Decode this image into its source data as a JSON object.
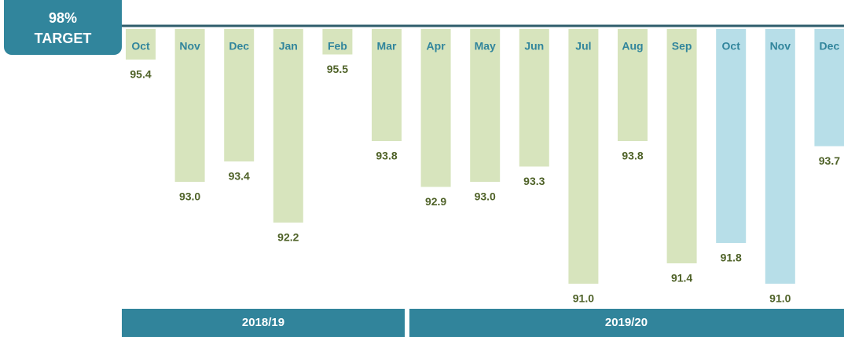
{
  "chart_data": {
    "type": "bar",
    "target_label": [
      "98%",
      "TARGET"
    ],
    "categories": [
      "Oct",
      "Nov",
      "Dec",
      "Jan",
      "Feb",
      "Mar",
      "Apr",
      "May",
      "Jun",
      "Jul",
      "Aug",
      "Sep",
      "Oct",
      "Nov",
      "Dec"
    ],
    "values": [
      95.4,
      93.0,
      93.4,
      92.2,
      95.5,
      93.8,
      92.9,
      93.0,
      93.3,
      91.0,
      93.8,
      91.4,
      91.8,
      91.0,
      93.7
    ],
    "value_labels": [
      "95.4",
      "93.0",
      "93.4",
      "92.2",
      "95.5",
      "93.8",
      "92.9",
      "93.0",
      "93.3",
      "91.0",
      "93.8",
      "91.4",
      "91.8",
      "91.0",
      "93.7"
    ],
    "colors": [
      "#d7e4bd",
      "#d7e4bd",
      "#d7e4bd",
      "#d7e4bd",
      "#d7e4bd",
      "#d7e4bd",
      "#d7e4bd",
      "#d7e4bd",
      "#d7e4bd",
      "#d7e4bd",
      "#d7e4bd",
      "#d7e4bd",
      "#b7dee8",
      "#b7dee8",
      "#b7dee8"
    ],
    "groups": [
      "2018/19",
      "2019/20"
    ],
    "ylim": [
      90.6,
      96
    ]
  }
}
